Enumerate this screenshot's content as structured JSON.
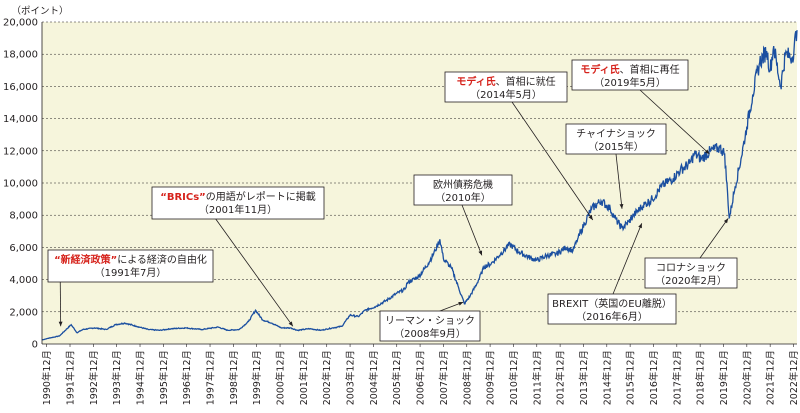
{
  "chart_data": {
    "type": "line",
    "unit_label": "（ポイント）",
    "ylim": [
      0,
      20000
    ],
    "yticks": [
      "0",
      "2,000",
      "4,000",
      "6,000",
      "8,000",
      "10,000",
      "12,000",
      "14,000",
      "16,000",
      "18,000",
      "20,000"
    ],
    "ytick_values": [
      0,
      2000,
      4000,
      6000,
      8000,
      10000,
      12000,
      14000,
      16000,
      18000,
      20000
    ],
    "xticks": [
      "1990年12月",
      "1991年12月",
      "1992年12月",
      "1993年12月",
      "1994年12月",
      "1995年12月",
      "1996年12月",
      "1997年12月",
      "1998年12月",
      "1999年12月",
      "2000年12月",
      "2001年12月",
      "2002年12月",
      "2003年12月",
      "2004年12月",
      "2005年12月",
      "2006年12月",
      "2007年12月",
      "2008年12月",
      "2009年12月",
      "2010年12月",
      "2011年12月",
      "2012年12月",
      "2013年12月",
      "2014年12月",
      "2015年12月",
      "2016年12月",
      "2017年12月",
      "2018年12月",
      "2019年12月",
      "2020年12月",
      "2021年12月",
      "2022年12月"
    ],
    "grid": true,
    "plot_background": "#f6f5dc",
    "line_color": "#1b4fa0",
    "series": [
      {
        "x": [
          1990.75,
          1991.0,
          1991.5,
          1992.0,
          1992.25,
          1992.5,
          1993.0,
          1993.5,
          1993.9,
          1994.3,
          1994.8,
          1995.3,
          1995.8,
          1996.3,
          1996.9,
          1997.6,
          1998.3,
          1998.7,
          1999.2,
          1999.6,
          1999.9,
          2000.2,
          2000.6,
          2001.0,
          2001.4,
          2001.7,
          2002.2,
          2002.7,
          2003.2,
          2003.6,
          2003.95,
          2004.3,
          2004.6,
          2005.0,
          2005.5,
          2005.9,
          2006.3,
          2006.4,
          2006.9,
          2007.3,
          2007.6,
          2007.8,
          2007.95,
          2008.3,
          2008.6,
          2008.85,
          2009.1,
          2009.4,
          2009.7,
          2010.0,
          2010.4,
          2010.8,
          2011.2,
          2011.6,
          2011.95,
          2012.4,
          2012.8,
          2013.2,
          2013.5,
          2013.7,
          2014.0,
          2014.3,
          2014.7,
          2015.1,
          2015.3,
          2015.6,
          2015.9,
          2016.1,
          2016.5,
          2016.9,
          2017.3,
          2017.8,
          2018.1,
          2018.5,
          2018.7,
          2019.0,
          2019.4,
          2019.8,
          2020.0,
          2020.2,
          2020.45,
          2020.7,
          2020.95,
          2021.2,
          2021.5,
          2021.8,
          2021.95,
          2022.1,
          2022.4,
          2022.6,
          2022.9,
          2023.1
        ],
        "y": [
          250,
          350,
          500,
          1200,
          700,
          900,
          1000,
          900,
          1200,
          1300,
          1100,
          900,
          850,
          950,
          1000,
          900,
          1050,
          850,
          900,
          1400,
          2100,
          1500,
          1300,
          1000,
          1000,
          850,
          950,
          850,
          1000,
          1100,
          1800,
          1700,
          2100,
          2300,
          2700,
          3100,
          3400,
          3800,
          4200,
          5000,
          5800,
          6500,
          5300,
          4700,
          3500,
          2500,
          3000,
          3800,
          4800,
          5000,
          5600,
          6200,
          5700,
          5400,
          5200,
          5500,
          5600,
          6000,
          5800,
          6500,
          7500,
          8400,
          8900,
          8400,
          7800,
          7200,
          7600,
          8000,
          8600,
          9000,
          9800,
          10300,
          10800,
          11200,
          11800,
          11500,
          12000,
          12200,
          11800,
          7800,
          9800,
          11500,
          13500,
          15500,
          17500,
          18200,
          17000,
          18500,
          16000,
          18000,
          17800,
          19500
        ]
      }
    ],
    "annotations": [
      {
        "id": "reform",
        "highlight": "“新経済政策”",
        "text": "による経済の自由化",
        "sub": "（1991年7月）",
        "x": 1991.55,
        "y": 1100
      },
      {
        "id": "brics",
        "highlight": "“BRICs”",
        "text": "の用語がレポートに掲載",
        "sub": "（2001年11月）",
        "x": 2001.5,
        "y": 1100
      },
      {
        "id": "lehman",
        "highlight": "",
        "text": "リーマン・ショック",
        "sub": "（2008年9月）",
        "x": 2008.8,
        "y": 2600
      },
      {
        "id": "euro",
        "highlight": "",
        "text": "欧州債務危機",
        "sub": "（2010年）",
        "x": 2009.6,
        "y": 5500
      },
      {
        "id": "modi1",
        "highlight": "モディ氏",
        "text": "、首相に就任",
        "sub": "（2014年5月）",
        "x": 2014.35,
        "y": 7700
      },
      {
        "id": "china",
        "highlight": "",
        "text": "チャイナショック",
        "sub": "（2015年）",
        "x": 2015.6,
        "y": 8400
      },
      {
        "id": "brexit",
        "highlight": "",
        "text": "BREXIT（英国のEU離脱）",
        "sub": "（2016年6月）",
        "x": 2016.45,
        "y": 7500
      },
      {
        "id": "modi2",
        "highlight": "モディ氏",
        "text": "、首相に再任",
        "sub": "（2019年5月）",
        "x": 2019.35,
        "y": 11800
      },
      {
        "id": "corona",
        "highlight": "",
        "text": "コロナショック",
        "sub": "（2020年2月）",
        "x": 2020.15,
        "y": 7800
      }
    ]
  }
}
